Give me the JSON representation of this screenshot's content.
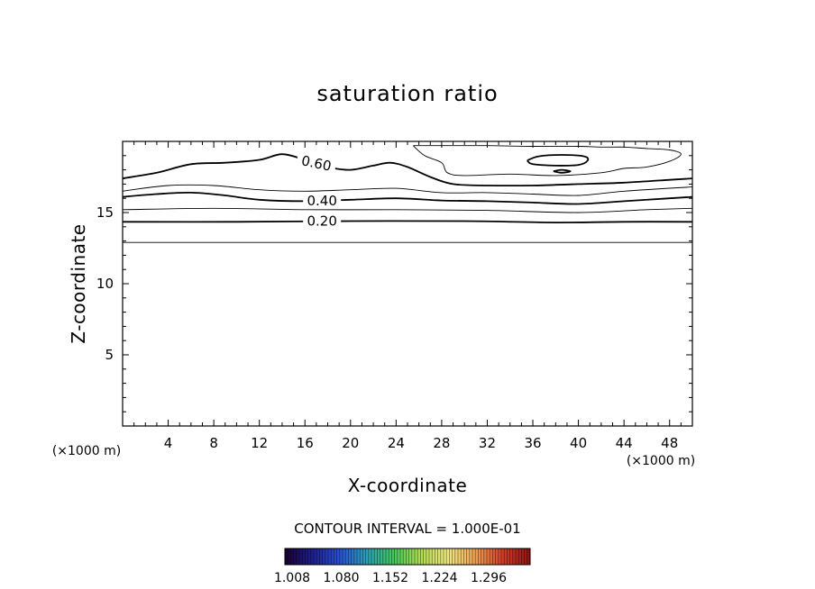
{
  "chart_data": {
    "type": "contour",
    "title": "saturation ratio",
    "xlabel": "X-coordinate",
    "ylabel": "Z-coordinate",
    "x_unit": "(×1000 m)",
    "xlim": [
      0,
      50
    ],
    "ylim": [
      0,
      20
    ],
    "x_ticks": [
      4,
      8,
      12,
      16,
      20,
      24,
      28,
      32,
      36,
      40,
      44,
      48
    ],
    "y_ticks": [
      5,
      10,
      15
    ],
    "contour_interval_text": "CONTOUR INTERVAL = 1.000E-01",
    "contours": [
      {
        "level": 0.1,
        "label": "",
        "points": [
          [
            0,
            12.9
          ],
          [
            50,
            12.9
          ]
        ]
      },
      {
        "level": 0.2,
        "label": "0.20",
        "points": [
          [
            0,
            14.35
          ],
          [
            10,
            14.35
          ],
          [
            20,
            14.4
          ],
          [
            30,
            14.4
          ],
          [
            38,
            14.3
          ],
          [
            44,
            14.35
          ],
          [
            50,
            14.35
          ]
        ]
      },
      {
        "level": 0.3,
        "label": "",
        "points": [
          [
            0,
            15.2
          ],
          [
            8,
            15.3
          ],
          [
            16,
            15.2
          ],
          [
            24,
            15.2
          ],
          [
            32,
            15.15
          ],
          [
            40,
            15.0
          ],
          [
            46,
            15.2
          ],
          [
            50,
            15.3
          ]
        ]
      },
      {
        "level": 0.4,
        "label": "0.40",
        "points": [
          [
            0,
            16.1
          ],
          [
            3,
            16.3
          ],
          [
            6,
            16.4
          ],
          [
            9,
            16.2
          ],
          [
            12,
            15.9
          ],
          [
            16,
            15.8
          ],
          [
            20,
            15.9
          ],
          [
            24,
            16.0
          ],
          [
            28,
            15.85
          ],
          [
            32,
            15.8
          ],
          [
            36,
            15.7
          ],
          [
            40,
            15.6
          ],
          [
            44,
            15.8
          ],
          [
            48,
            16.0
          ],
          [
            50,
            16.1
          ]
        ]
      },
      {
        "level": 0.5,
        "label": "",
        "points": [
          [
            0,
            16.5
          ],
          [
            4,
            16.9
          ],
          [
            8,
            16.9
          ],
          [
            12,
            16.6
          ],
          [
            16,
            16.5
          ],
          [
            20,
            16.6
          ],
          [
            24,
            16.7
          ],
          [
            28,
            16.4
          ],
          [
            32,
            16.4
          ],
          [
            36,
            16.3
          ],
          [
            40,
            16.2
          ],
          [
            44,
            16.5
          ],
          [
            50,
            16.8
          ]
        ]
      },
      {
        "level": 0.6,
        "label": "0.60",
        "points": [
          [
            0,
            17.4
          ],
          [
            3,
            17.8
          ],
          [
            6,
            18.4
          ],
          [
            9,
            18.5
          ],
          [
            12,
            18.7
          ],
          [
            14,
            19.1
          ],
          [
            16,
            18.7
          ],
          [
            18,
            18.2
          ],
          [
            20,
            18.0
          ],
          [
            22,
            18.3
          ],
          [
            23.5,
            18.5
          ],
          [
            25,
            18.2
          ],
          [
            27,
            17.5
          ],
          [
            29,
            17.0
          ],
          [
            32,
            16.9
          ],
          [
            36,
            16.9
          ],
          [
            40,
            17.0
          ],
          [
            44,
            17.1
          ],
          [
            48,
            17.3
          ],
          [
            50,
            17.4
          ]
        ]
      },
      {
        "level": 0.7,
        "label": "",
        "points": [
          [
            25.5,
            19.7
          ],
          [
            26.5,
            19.0
          ],
          [
            28,
            18.5
          ],
          [
            28.5,
            17.8
          ],
          [
            30,
            17.6
          ],
          [
            34,
            17.7
          ],
          [
            38,
            17.6
          ],
          [
            42,
            17.8
          ],
          [
            44,
            18.1
          ],
          [
            46,
            18.2
          ],
          [
            48,
            18.6
          ],
          [
            49,
            19.1
          ],
          [
            48,
            19.4
          ],
          [
            46,
            19.5
          ],
          [
            44,
            19.6
          ],
          [
            42,
            19.6
          ],
          [
            40,
            19.65
          ],
          [
            36,
            19.65
          ],
          [
            32,
            19.7
          ],
          [
            28,
            19.7
          ],
          [
            25.5,
            19.7
          ]
        ]
      },
      {
        "level": 0.8,
        "label": "",
        "points": [
          [
            35.5,
            18.65
          ],
          [
            36.5,
            18.95
          ],
          [
            38.5,
            19.05
          ],
          [
            40.5,
            18.95
          ],
          [
            40.8,
            18.65
          ],
          [
            40,
            18.35
          ],
          [
            38,
            18.3
          ],
          [
            36,
            18.4
          ],
          [
            35.5,
            18.65
          ]
        ]
      },
      {
        "level": 0.8,
        "label": "",
        "points": [
          [
            37.8,
            17.9
          ],
          [
            38.5,
            18.0
          ],
          [
            39.3,
            17.9
          ],
          [
            38.5,
            17.8
          ],
          [
            37.8,
            17.9
          ]
        ]
      }
    ],
    "colorbar": {
      "ticks": [
        "1.008",
        "1.080",
        "1.152",
        "1.224",
        "1.296"
      ],
      "colors": [
        "#1a0033",
        "#1e1e8c",
        "#2850d2",
        "#2aa0b4",
        "#44c85a",
        "#b4dc50",
        "#f0e682",
        "#f0a050",
        "#d23c28",
        "#8c1414"
      ]
    }
  }
}
